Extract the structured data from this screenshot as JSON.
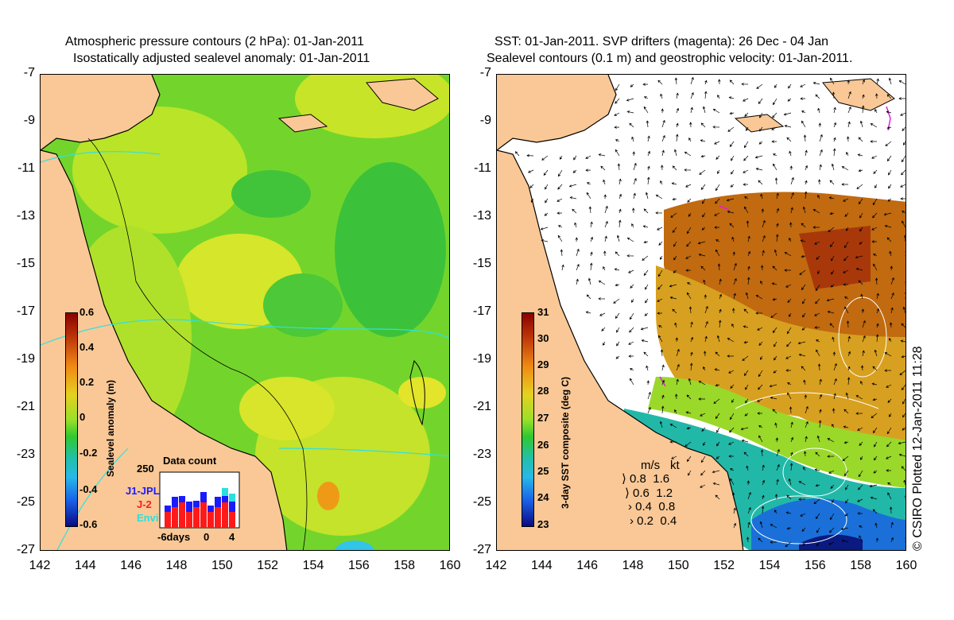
{
  "left": {
    "title_line1": "Atmospheric pressure contours (2 hPa): 01-Jan-2011",
    "title_line2": "Isostatically adjusted sealevel anomaly: 01-Jan-2011",
    "colorbar": {
      "label": "Sealevel anomaly (m)",
      "ticks": [
        "0.6",
        "0.4",
        "0.2",
        "0",
        "-0.2",
        "-0.4",
        "-0.6"
      ]
    },
    "inset": {
      "title": "Data count",
      "ymax": "250",
      "xlabels": [
        "-6days",
        "0",
        "4"
      ],
      "legend": [
        {
          "name": "J1-JPL",
          "color": "#1a1aff"
        },
        {
          "name": "J-2",
          "color": "#ff1a1a"
        },
        {
          "name": "Envi",
          "color": "#28e0e0"
        }
      ]
    }
  },
  "right": {
    "title_line1": "SST: 01-Jan-2011. SVP drifters (magenta): 26 Dec - 04 Jan",
    "title_line2": "Sealevel contours (0.1 m) and geostrophic velocity: 01-Jan-2011.",
    "colorbar": {
      "label": "3-day SST composite (deg C)",
      "ticks": [
        "31",
        "30",
        "29",
        "28",
        "27",
        "26",
        "25",
        "24",
        "23"
      ]
    },
    "velocity_legend": {
      "header_ms": "m/s",
      "header_kt": "kt",
      "rows": [
        {
          "ms": "0.8",
          "kt": "1.6"
        },
        {
          "ms": "0.6",
          "kt": "1.2"
        },
        {
          "ms": "0.4",
          "kt": "0.8"
        },
        {
          "ms": "0.2",
          "kt": "0.4"
        }
      ]
    }
  },
  "axes": {
    "y_ticks": [
      "-7",
      "-9",
      "-11",
      "-13",
      "-15",
      "-17",
      "-19",
      "-21",
      "-23",
      "-25",
      "-27"
    ],
    "x_ticks": [
      "142",
      "144",
      "146",
      "148",
      "150",
      "152",
      "154",
      "156",
      "158",
      "160"
    ]
  },
  "credit": "© CSIRO Plotted 12-Jan-2011 11:28",
  "colors": {
    "land": "#f9c896",
    "ocean_green": "#5fd424",
    "ocean_yellow": "#e6ea20",
    "ocean_orange": "#c87000",
    "sst_dark": "#b24a08",
    "cyan": "#30e0e0",
    "magenta": "#e020e0"
  }
}
